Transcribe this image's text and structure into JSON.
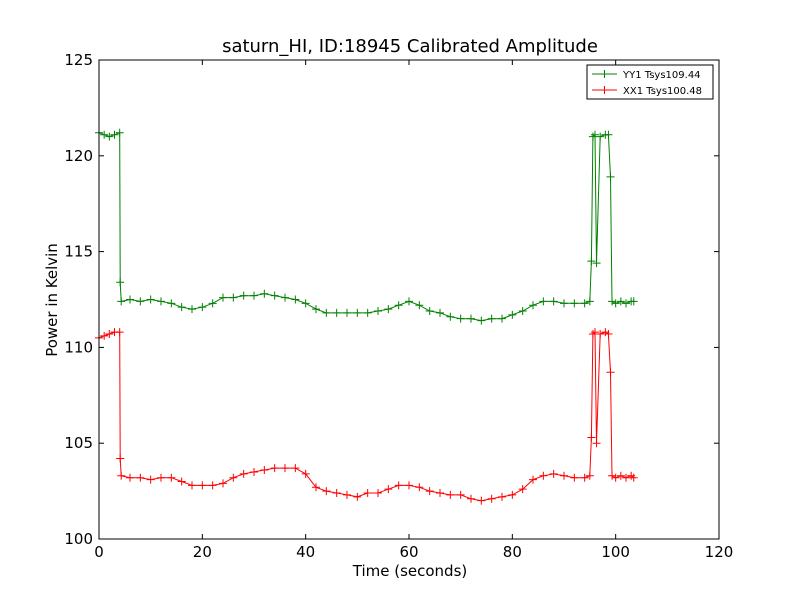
{
  "chart_data": {
    "type": "line",
    "title": "saturn_HI, ID:18945 Calibrated Amplitude",
    "xlabel": "Time (seconds)",
    "ylabel": "Power in Kelvin",
    "xlim": [
      0,
      120
    ],
    "ylim": [
      100,
      125
    ],
    "x_ticks": [
      "0",
      "20",
      "40",
      "60",
      "80",
      "100",
      "120"
    ],
    "y_ticks": [
      "100",
      "105",
      "110",
      "115",
      "120",
      "125"
    ],
    "grid": false,
    "legend_position": "top-right",
    "marker": "+",
    "series": [
      {
        "name": "YY1 Tsys109.44",
        "color": "#008000",
        "x": [
          0,
          1,
          2,
          3,
          4,
          4.1,
          4.3,
          6,
          8,
          10,
          12,
          14,
          16,
          18,
          20,
          22,
          24,
          26,
          28,
          30,
          32,
          34,
          36,
          38,
          40,
          42,
          44,
          46,
          48,
          50,
          52,
          54,
          56,
          58,
          60,
          62,
          64,
          66,
          68,
          70,
          72,
          74,
          76,
          78,
          80,
          82,
          84,
          86,
          88,
          90,
          92,
          94,
          95,
          95.3,
          95.6,
          96,
          96.3,
          97,
          98,
          98.6,
          99,
          99.3,
          100,
          101,
          102,
          103,
          103.5
        ],
        "y": [
          121.2,
          121.1,
          121.0,
          121.1,
          121.2,
          113.4,
          112.4,
          112.5,
          112.4,
          112.5,
          112.4,
          112.3,
          112.1,
          112.0,
          112.1,
          112.3,
          112.6,
          112.6,
          112.7,
          112.7,
          112.8,
          112.7,
          112.6,
          112.5,
          112.3,
          112.0,
          111.8,
          111.8,
          111.8,
          111.8,
          111.8,
          111.9,
          112.0,
          112.2,
          112.4,
          112.2,
          111.9,
          111.8,
          111.6,
          111.5,
          111.5,
          111.4,
          111.5,
          111.5,
          111.7,
          111.9,
          112.2,
          112.4,
          112.4,
          112.3,
          112.3,
          112.3,
          112.4,
          114.5,
          121.0,
          121.1,
          114.4,
          121.0,
          121.1,
          121.1,
          118.9,
          112.4,
          112.3,
          112.4,
          112.3,
          112.4,
          112.4
        ]
      },
      {
        "name": "XX1 Tsys100.48",
        "color": "#ff0000",
        "x": [
          0,
          1,
          2,
          3,
          4,
          4.1,
          4.3,
          6,
          8,
          10,
          12,
          14,
          16,
          18,
          20,
          22,
          24,
          26,
          28,
          30,
          32,
          34,
          36,
          38,
          40,
          42,
          44,
          46,
          48,
          50,
          52,
          54,
          56,
          58,
          60,
          62,
          64,
          66,
          68,
          70,
          72,
          74,
          76,
          78,
          80,
          82,
          84,
          86,
          88,
          90,
          92,
          94,
          95,
          95.3,
          95.6,
          96,
          96.3,
          97,
          98,
          98.6,
          99,
          99.3,
          100,
          101,
          102,
          103,
          103.5
        ],
        "y": [
          110.5,
          110.6,
          110.7,
          110.8,
          110.8,
          104.2,
          103.3,
          103.2,
          103.2,
          103.1,
          103.2,
          103.2,
          103.0,
          102.8,
          102.8,
          102.8,
          102.9,
          103.2,
          103.4,
          103.5,
          103.6,
          103.7,
          103.7,
          103.7,
          103.4,
          102.7,
          102.5,
          102.4,
          102.3,
          102.2,
          102.4,
          102.4,
          102.6,
          102.8,
          102.8,
          102.7,
          102.5,
          102.4,
          102.3,
          102.3,
          102.1,
          102.0,
          102.1,
          102.2,
          102.3,
          102.6,
          103.1,
          103.3,
          103.4,
          103.3,
          103.2,
          103.2,
          103.3,
          105.3,
          110.7,
          110.8,
          105.0,
          110.7,
          110.8,
          110.7,
          108.7,
          103.3,
          103.2,
          103.3,
          103.2,
          103.3,
          103.2
        ]
      }
    ]
  }
}
